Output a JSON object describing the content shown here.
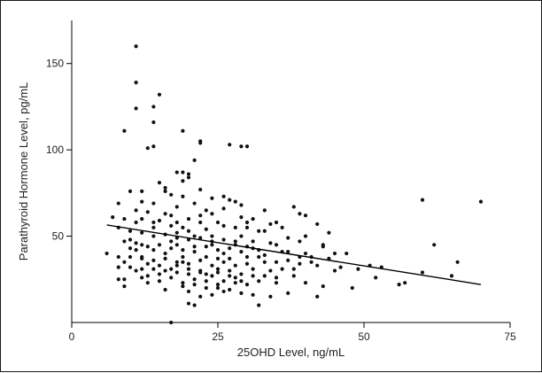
{
  "chart_data": {
    "type": "scatter",
    "title": "",
    "xlabel": "25OHD Level, ng/mL",
    "ylabel": "Parathyroid Hormone Level, pg/mL",
    "xlim": [
      0,
      75
    ],
    "ylim": [
      0,
      175
    ],
    "xticks": [
      0,
      25,
      50,
      75
    ],
    "yticks": [
      50,
      100,
      150
    ],
    "x_tick_labels": [
      "0",
      "25",
      "50",
      "75"
    ],
    "y_tick_labels": [
      "50",
      "100",
      "150"
    ],
    "grid": false,
    "legend": "none",
    "trendline": {
      "x": [
        6,
        70
      ],
      "y": [
        56.5,
        22
      ]
    },
    "points": [
      [
        11,
        160
      ],
      [
        11,
        139
      ],
      [
        15,
        132
      ],
      [
        11,
        124
      ],
      [
        14,
        125
      ],
      [
        14,
        116
      ],
      [
        9,
        111
      ],
      [
        19,
        111
      ],
      [
        13,
        101
      ],
      [
        14,
        102
      ],
      [
        27,
        103
      ],
      [
        29,
        102
      ],
      [
        30,
        102
      ],
      [
        22,
        105
      ],
      [
        22,
        104
      ],
      [
        21,
        94
      ],
      [
        18,
        87
      ],
      [
        19,
        87
      ],
      [
        20,
        86
      ],
      [
        19,
        82
      ],
      [
        20,
        84
      ],
      [
        15,
        81
      ],
      [
        16,
        78
      ],
      [
        22,
        77
      ],
      [
        10,
        76
      ],
      [
        12,
        76
      ],
      [
        16,
        76
      ],
      [
        17,
        74
      ],
      [
        19,
        73
      ],
      [
        26,
        73
      ],
      [
        24,
        72
      ],
      [
        27,
        71
      ],
      [
        28,
        70
      ],
      [
        29,
        68
      ],
      [
        8,
        69
      ],
      [
        12,
        70
      ],
      [
        14,
        69
      ],
      [
        18,
        67
      ],
      [
        21,
        69
      ],
      [
        23,
        65
      ],
      [
        33,
        65
      ],
      [
        38,
        67
      ],
      [
        39,
        63
      ],
      [
        40,
        62
      ],
      [
        60,
        71
      ],
      [
        70,
        70
      ],
      [
        11,
        65
      ],
      [
        13,
        64
      ],
      [
        17,
        62
      ],
      [
        20,
        60
      ],
      [
        22,
        58
      ],
      [
        25,
        58
      ],
      [
        29,
        61
      ],
      [
        31,
        60
      ],
      [
        35,
        58
      ],
      [
        7,
        61
      ],
      [
        9,
        60
      ],
      [
        11,
        58
      ],
      [
        14,
        58
      ],
      [
        15,
        59
      ],
      [
        17,
        56
      ],
      [
        19,
        55
      ],
      [
        23,
        54
      ],
      [
        26,
        56
      ],
      [
        30,
        55
      ],
      [
        33,
        53
      ],
      [
        36,
        55
      ],
      [
        42,
        57
      ],
      [
        8,
        55
      ],
      [
        10,
        53
      ],
      [
        12,
        52
      ],
      [
        14,
        50
      ],
      [
        16,
        51
      ],
      [
        18,
        49
      ],
      [
        20,
        48
      ],
      [
        22,
        49
      ],
      [
        24,
        50
      ],
      [
        26,
        48
      ],
      [
        28,
        47
      ],
      [
        31,
        47
      ],
      [
        34,
        46
      ],
      [
        37,
        49
      ],
      [
        39,
        47
      ],
      [
        44,
        52
      ],
      [
        9,
        47
      ],
      [
        11,
        46
      ],
      [
        13,
        44
      ],
      [
        15,
        45
      ],
      [
        17,
        43
      ],
      [
        19,
        42
      ],
      [
        21,
        41
      ],
      [
        23,
        44
      ],
      [
        25,
        42
      ],
      [
        27,
        43
      ],
      [
        29,
        41
      ],
      [
        32,
        42
      ],
      [
        35,
        45
      ],
      [
        36,
        41
      ],
      [
        40,
        40
      ],
      [
        43,
        44
      ],
      [
        6,
        40
      ],
      [
        8,
        38
      ],
      [
        10,
        38
      ],
      [
        12,
        37
      ],
      [
        14,
        36
      ],
      [
        16,
        37
      ],
      [
        18,
        35
      ],
      [
        20,
        34
      ],
      [
        22,
        36
      ],
      [
        24,
        33
      ],
      [
        26,
        35
      ],
      [
        28,
        33
      ],
      [
        30,
        34
      ],
      [
        33,
        35
      ],
      [
        37,
        36
      ],
      [
        41,
        38
      ],
      [
        44,
        37
      ],
      [
        45,
        40
      ],
      [
        8,
        32
      ],
      [
        10,
        32
      ],
      [
        12,
        31
      ],
      [
        14,
        31
      ],
      [
        16,
        30
      ],
      [
        18,
        29
      ],
      [
        20,
        28
      ],
      [
        22,
        29
      ],
      [
        25,
        29
      ],
      [
        27,
        30
      ],
      [
        29,
        28
      ],
      [
        31,
        27
      ],
      [
        34,
        30
      ],
      [
        38,
        31
      ],
      [
        42,
        33
      ],
      [
        46,
        32
      ],
      [
        49,
        31
      ],
      [
        51,
        33
      ],
      [
        53,
        32
      ],
      [
        8,
        25
      ],
      [
        9,
        25
      ],
      [
        12,
        26
      ],
      [
        15,
        24
      ],
      [
        17,
        26
      ],
      [
        19,
        23
      ],
      [
        21,
        22
      ],
      [
        23,
        24
      ],
      [
        25,
        22
      ],
      [
        28,
        23
      ],
      [
        30,
        22
      ],
      [
        32,
        24
      ],
      [
        35,
        23
      ],
      [
        40,
        23
      ],
      [
        43,
        21
      ],
      [
        48,
        20
      ],
      [
        52,
        26
      ],
      [
        57,
        23
      ],
      [
        62,
        45
      ],
      [
        66,
        35
      ],
      [
        65,
        27
      ],
      [
        9,
        21
      ],
      [
        13,
        23
      ],
      [
        16,
        19
      ],
      [
        20,
        18
      ],
      [
        22,
        15
      ],
      [
        24,
        16
      ],
      [
        26,
        18
      ],
      [
        29,
        17
      ],
      [
        31,
        16
      ],
      [
        34,
        15
      ],
      [
        37,
        17
      ],
      [
        42,
        15
      ],
      [
        20,
        11
      ],
      [
        21,
        10
      ],
      [
        32,
        10
      ],
      [
        17,
        0
      ],
      [
        11,
        42
      ],
      [
        13,
        34
      ],
      [
        19,
        38
      ],
      [
        21,
        44
      ],
      [
        23,
        38
      ],
      [
        27,
        37
      ],
      [
        30,
        38
      ],
      [
        33,
        39
      ],
      [
        35,
        35
      ],
      [
        39,
        34
      ],
      [
        24,
        45
      ],
      [
        26,
        40
      ],
      [
        28,
        45
      ],
      [
        18,
        45
      ],
      [
        16,
        40
      ],
      [
        14,
        42
      ],
      [
        12,
        38
      ],
      [
        10,
        43
      ],
      [
        30,
        44
      ],
      [
        32,
        38
      ],
      [
        36,
        31
      ],
      [
        38,
        27
      ],
      [
        22,
        30
      ],
      [
        20,
        31
      ],
      [
        18,
        33
      ],
      [
        24,
        27
      ],
      [
        26,
        24
      ],
      [
        28,
        26
      ],
      [
        27,
        19
      ],
      [
        25,
        20
      ],
      [
        23,
        20
      ],
      [
        19,
        21
      ],
      [
        15,
        28
      ],
      [
        13,
        27
      ],
      [
        11,
        30
      ],
      [
        9,
        35
      ],
      [
        31,
        31
      ],
      [
        33,
        27
      ],
      [
        35,
        26
      ],
      [
        29,
        24
      ],
      [
        17,
        31
      ],
      [
        21,
        25
      ],
      [
        23,
        28
      ],
      [
        25,
        31
      ],
      [
        27,
        27
      ],
      [
        18,
        58
      ],
      [
        20,
        53
      ],
      [
        22,
        62
      ],
      [
        24,
        63
      ],
      [
        26,
        66
      ],
      [
        28,
        55
      ],
      [
        30,
        58
      ],
      [
        32,
        53
      ],
      [
        34,
        57
      ],
      [
        16,
        63
      ],
      [
        14,
        55
      ],
      [
        12,
        60
      ],
      [
        10,
        48
      ],
      [
        18,
        52
      ],
      [
        24,
        47
      ],
      [
        40,
        50
      ],
      [
        43,
        45
      ],
      [
        47,
        40
      ],
      [
        56,
        22
      ],
      [
        60,
        29
      ],
      [
        12,
        45
      ],
      [
        21,
        50
      ],
      [
        17,
        47
      ],
      [
        19,
        35
      ],
      [
        15,
        33
      ],
      [
        25,
        37
      ],
      [
        29,
        50
      ],
      [
        31,
        43
      ],
      [
        37,
        41
      ],
      [
        39,
        38
      ],
      [
        41,
        35
      ],
      [
        45,
        30
      ]
    ]
  }
}
